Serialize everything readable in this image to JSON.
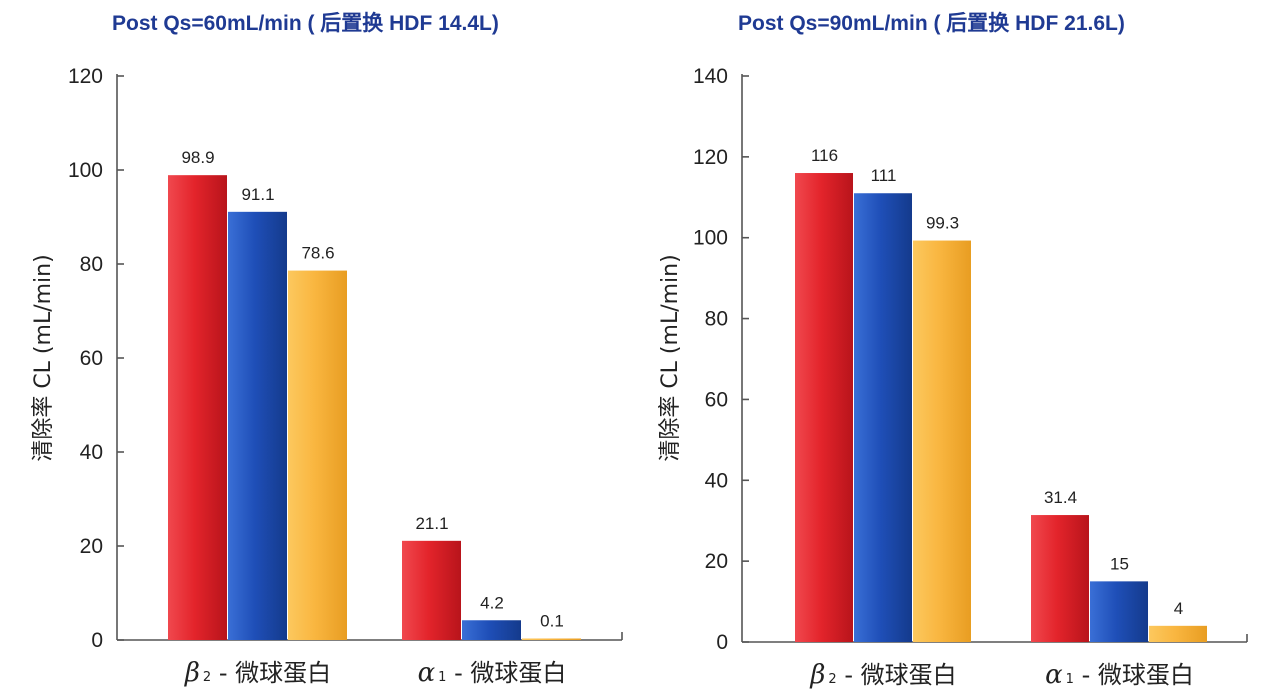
{
  "chart_data": [
    {
      "type": "bar",
      "title": "Post Qs=60mL/min ( 后置换 HDF 14.4L)",
      "ylabel": "清除率  CL (mL/min)",
      "xlabel": "",
      "ylim": [
        0,
        120
      ],
      "yticks": [
        0,
        20,
        40,
        60,
        80,
        100,
        120
      ],
      "categories": [
        {
          "greek": "β",
          "sub": "2",
          "text": " - 微球蛋白"
        },
        {
          "greek": "α",
          "sub": "1",
          "text": " - 微球蛋白"
        }
      ],
      "series": [
        {
          "color": "#e3242b",
          "values": [
            98.9,
            21.1
          ],
          "labels": [
            "98.9",
            "21.1"
          ]
        },
        {
          "color": "#1f4fb8",
          "values": [
            91.1,
            4.2
          ],
          "labels": [
            "91.1",
            "4.2"
          ]
        },
        {
          "color": "#f9b640",
          "values": [
            78.6,
            0.1
          ],
          "labels": [
            "78.6",
            "0.1"
          ]
        }
      ],
      "grid": false,
      "legend": "none"
    },
    {
      "type": "bar",
      "title": "Post Qs=90mL/min ( 后置换 HDF 21.6L)",
      "ylabel": "清除率  CL (mL/min)",
      "xlabel": "",
      "ylim": [
        0,
        140
      ],
      "yticks": [
        0,
        20,
        40,
        60,
        80,
        100,
        120,
        140
      ],
      "categories": [
        {
          "greek": "β",
          "sub": "2",
          "text": " - 微球蛋白"
        },
        {
          "greek": "α",
          "sub": "1",
          "text": " - 微球蛋白"
        }
      ],
      "series": [
        {
          "color": "#e3242b",
          "values": [
            116,
            31.4
          ],
          "labels": [
            "116",
            "31.4"
          ]
        },
        {
          "color": "#1f4fb8",
          "values": [
            111,
            15
          ],
          "labels": [
            "111",
            "15"
          ]
        },
        {
          "color": "#f9b640",
          "values": [
            99.3,
            4
          ],
          "labels": [
            "99.3",
            "4"
          ]
        }
      ],
      "grid": false,
      "legend": "none"
    }
  ]
}
